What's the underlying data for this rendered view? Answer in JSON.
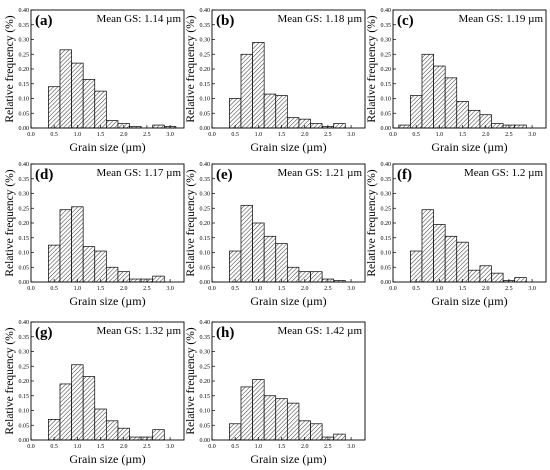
{
  "figure": {
    "panels": [
      {
        "label": "(a)",
        "mean_label": "Mean GS: 1.14 µm",
        "ylabel": "Relative frequency (%)",
        "xlabel": "Grain size (µm)"
      },
      {
        "label": "(b)",
        "mean_label": "Mean GS: 1.18 µm",
        "ylabel": "Relative frequency (%)",
        "xlabel": "Grain size (µm)"
      },
      {
        "label": "(c)",
        "mean_label": "Mean GS: 1.19 µm",
        "ylabel": "Relative frequency (%)",
        "xlabel": "Grain size (µm)"
      },
      {
        "label": "(d)",
        "mean_label": "Mean GS: 1.17 µm",
        "ylabel": "Relative frequency (%)",
        "xlabel": "Grain size (µm)"
      },
      {
        "label": "(e)",
        "mean_label": "Mean GS: 1.21 µm",
        "ylabel": "Relative frequency (%)",
        "xlabel": "Grain size (µm)"
      },
      {
        "label": "(f)",
        "mean_label": "Mean GS: 1.2 µm",
        "ylabel": "Relative frequency (%)",
        "xlabel": "Grain size (µm)"
      },
      {
        "label": "(g)",
        "mean_label": "Mean GS: 1.32 µm",
        "ylabel": "Relative frequency (%)",
        "xlabel": "Grain size (µm)"
      },
      {
        "label": "(h)",
        "mean_label": "Mean GS: 1.42 µm",
        "ylabel": "Relative frequency (%)",
        "xlabel": "Grain size (µm)"
      }
    ]
  },
  "chart_data": [
    {
      "type": "bar",
      "panel": "(a)",
      "title": "Mean GS: 1.14 µm",
      "xlabel": "Grain size (µm)",
      "ylabel": "Relative frequency (%)",
      "bin_centers": [
        0.25,
        0.5,
        0.75,
        1.0,
        1.25,
        1.5,
        1.75,
        2.0,
        2.25,
        2.5,
        2.75,
        3.0,
        3.25
      ],
      "values": [
        0.0,
        0.14,
        0.265,
        0.22,
        0.165,
        0.125,
        0.025,
        0.015,
        0.005,
        0.0,
        0.01,
        0.005,
        0.0
      ],
      "xlim": [
        0,
        3.3
      ],
      "ylim": [
        0,
        0.4
      ],
      "xticks": [
        "0.0",
        "0.5",
        "1.0",
        "1.5",
        "2.0",
        "2.5",
        "3.0"
      ],
      "yticks": [
        "0.00",
        "0.05",
        "0.10",
        "0.15",
        "0.20",
        "0.25",
        "0.30",
        "0.35",
        "0.40"
      ]
    },
    {
      "type": "bar",
      "panel": "(b)",
      "title": "Mean GS: 1.18 µm",
      "xlabel": "Grain size (µm)",
      "ylabel": "Relative frequency (%)",
      "bin_centers": [
        0.25,
        0.5,
        0.75,
        1.0,
        1.25,
        1.5,
        1.75,
        2.0,
        2.25,
        2.5,
        2.75,
        3.0,
        3.25
      ],
      "values": [
        0.0,
        0.1,
        0.25,
        0.29,
        0.115,
        0.11,
        0.035,
        0.03,
        0.015,
        0.005,
        0.015,
        0.0,
        0.0
      ],
      "xlim": [
        0,
        3.3
      ],
      "ylim": [
        0,
        0.4
      ],
      "xticks": [
        "0.0",
        "0.5",
        "1.0",
        "1.5",
        "2.0",
        "2.5",
        "3.0"
      ],
      "yticks": [
        "0.00",
        "0.05",
        "0.10",
        "0.15",
        "0.20",
        "0.25",
        "0.30",
        "0.35",
        "0.40"
      ]
    },
    {
      "type": "bar",
      "panel": "(c)",
      "title": "Mean GS: 1.19 µm",
      "xlabel": "Grain size (µm)",
      "ylabel": "Relative frequency (%)",
      "bin_centers": [
        0.25,
        0.5,
        0.75,
        1.0,
        1.25,
        1.5,
        1.75,
        2.0,
        2.25,
        2.5,
        2.75,
        3.0,
        3.25
      ],
      "values": [
        0.01,
        0.11,
        0.25,
        0.21,
        0.17,
        0.09,
        0.06,
        0.045,
        0.015,
        0.01,
        0.01,
        0.0,
        0.0
      ],
      "xlim": [
        0,
        3.3
      ],
      "ylim": [
        0,
        0.4
      ],
      "xticks": [
        "0.0",
        "0.5",
        "1.0",
        "1.5",
        "2.0",
        "2.5",
        "3.0"
      ],
      "yticks": [
        "0.00",
        "0.05",
        "0.10",
        "0.15",
        "0.20",
        "0.25",
        "0.30",
        "0.35",
        "0.40"
      ]
    },
    {
      "type": "bar",
      "panel": "(d)",
      "title": "Mean GS: 1.17 µm",
      "xlabel": "Grain size (µm)",
      "ylabel": "Relative frequency (%)",
      "bin_centers": [
        0.25,
        0.5,
        0.75,
        1.0,
        1.25,
        1.5,
        1.75,
        2.0,
        2.25,
        2.5,
        2.75,
        3.0,
        3.25
      ],
      "values": [
        0.0,
        0.125,
        0.245,
        0.255,
        0.12,
        0.105,
        0.05,
        0.035,
        0.01,
        0.01,
        0.02,
        0.0,
        0.0
      ],
      "xlim": [
        0,
        3.3
      ],
      "ylim": [
        0,
        0.4
      ],
      "xticks": [
        "0.0",
        "0.5",
        "1.0",
        "1.5",
        "2.0",
        "2.5",
        "3.0"
      ],
      "yticks": [
        "0.00",
        "0.05",
        "0.10",
        "0.15",
        "0.20",
        "0.25",
        "0.30",
        "0.35",
        "0.40"
      ]
    },
    {
      "type": "bar",
      "panel": "(e)",
      "title": "Mean GS: 1.21 µm",
      "xlabel": "Grain size (µm)",
      "ylabel": "Relative frequency (%)",
      "bin_centers": [
        0.25,
        0.5,
        0.75,
        1.0,
        1.25,
        1.5,
        1.75,
        2.0,
        2.25,
        2.5,
        2.75,
        3.0,
        3.25
      ],
      "values": [
        0.0,
        0.105,
        0.26,
        0.2,
        0.155,
        0.13,
        0.05,
        0.035,
        0.035,
        0.01,
        0.005,
        0.0,
        0.0
      ],
      "xlim": [
        0,
        3.3
      ],
      "ylim": [
        0,
        0.4
      ],
      "xticks": [
        "0.0",
        "0.5",
        "1.0",
        "1.5",
        "2.0",
        "2.5",
        "3.0"
      ],
      "yticks": [
        "0.00",
        "0.05",
        "0.10",
        "0.15",
        "0.20",
        "0.25",
        "0.30",
        "0.35",
        "0.40"
      ]
    },
    {
      "type": "bar",
      "panel": "(f)",
      "title": "Mean GS: 1.2 µm",
      "xlabel": "Grain size (µm)",
      "ylabel": "Relative frequency (%)",
      "bin_centers": [
        0.25,
        0.5,
        0.75,
        1.0,
        1.25,
        1.5,
        1.75,
        2.0,
        2.25,
        2.5,
        2.75,
        3.0,
        3.25
      ],
      "values": [
        0.0,
        0.105,
        0.245,
        0.195,
        0.155,
        0.135,
        0.04,
        0.055,
        0.03,
        0.005,
        0.015,
        0.0,
        0.0
      ],
      "xlim": [
        0,
        3.3
      ],
      "ylim": [
        0,
        0.4
      ],
      "xticks": [
        "0.0",
        "0.5",
        "1.0",
        "1.5",
        "2.0",
        "2.5",
        "3.0"
      ],
      "yticks": [
        "0.00",
        "0.05",
        "0.10",
        "0.15",
        "0.20",
        "0.25",
        "0.30",
        "0.35",
        "0.40"
      ]
    },
    {
      "type": "bar",
      "panel": "(g)",
      "title": "Mean GS: 1.32 µm",
      "xlabel": "Grain size (µm)",
      "ylabel": "Relative frequency (%)",
      "bin_centers": [
        0.25,
        0.5,
        0.75,
        1.0,
        1.25,
        1.5,
        1.75,
        2.0,
        2.25,
        2.5,
        2.75,
        3.0,
        3.25
      ],
      "values": [
        0.0,
        0.07,
        0.19,
        0.255,
        0.215,
        0.105,
        0.065,
        0.04,
        0.01,
        0.01,
        0.035,
        0.0,
        0.0
      ],
      "xlim": [
        0,
        3.3
      ],
      "ylim": [
        0,
        0.4
      ],
      "xticks": [
        "0.0",
        "0.5",
        "1.0",
        "1.5",
        "2.0",
        "2.5",
        "3.0"
      ],
      "yticks": [
        "0.00",
        "0.05",
        "0.10",
        "0.15",
        "0.20",
        "0.25",
        "0.30",
        "0.35",
        "0.40"
      ]
    },
    {
      "type": "bar",
      "panel": "(h)",
      "title": "Mean GS: 1.42 µm",
      "xlabel": "Grain size (µm)",
      "ylabel": "Relative frequency (%)",
      "bin_centers": [
        0.25,
        0.5,
        0.75,
        1.0,
        1.25,
        1.5,
        1.75,
        2.0,
        2.25,
        2.5,
        2.75,
        3.0,
        3.25
      ],
      "values": [
        0.0,
        0.055,
        0.18,
        0.205,
        0.15,
        0.14,
        0.125,
        0.065,
        0.055,
        0.01,
        0.02,
        0.0,
        0.0
      ],
      "xlim": [
        0,
        3.3
      ],
      "ylim": [
        0,
        0.4
      ],
      "xticks": [
        "0.0",
        "0.5",
        "1.0",
        "1.5",
        "2.0",
        "2.5",
        "3.0"
      ],
      "yticks": [
        "0.00",
        "0.05",
        "0.10",
        "0.15",
        "0.20",
        "0.25",
        "0.30",
        "0.35",
        "0.40"
      ]
    }
  ]
}
